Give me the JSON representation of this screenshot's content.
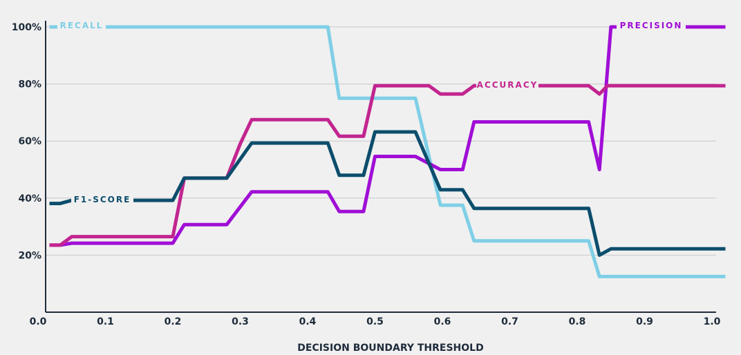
{
  "chart_data": {
    "type": "line",
    "title": "",
    "xlabel": "DECISION BOUNDARY THRESHOLD",
    "ylabel": "",
    "xlim": [
      0.0,
      1.04
    ],
    "ylim": [
      0,
      100
    ],
    "x_ticks": [
      "0.0",
      "0.1",
      "0.2",
      "0.3",
      "0.4",
      "0.5",
      "0.6",
      "0.7",
      "0.8",
      "0.9",
      "1.0"
    ],
    "y_ticks": [
      "20%",
      "40%",
      "60%",
      "80%",
      "100%"
    ],
    "grid": "horizontal",
    "series": [
      {
        "name": "RECALL",
        "color": "#7fcfe6",
        "points": [
          [
            0.017,
            100
          ],
          [
            0.43,
            100
          ],
          [
            0.447,
            75
          ],
          [
            0.56,
            75
          ],
          [
            0.597,
            37.5
          ],
          [
            0.63,
            37.5
          ],
          [
            0.647,
            25
          ],
          [
            0.817,
            25
          ],
          [
            0.833,
            12.5
          ],
          [
            1.02,
            12.5
          ]
        ]
      },
      {
        "name": "PRECISION",
        "color": "#a00ed6",
        "points": [
          [
            0.017,
            23.5
          ],
          [
            0.033,
            23.5
          ],
          [
            0.05,
            24.2
          ],
          [
            0.2,
            24.2
          ],
          [
            0.217,
            30.7
          ],
          [
            0.28,
            30.7
          ],
          [
            0.317,
            42.2
          ],
          [
            0.43,
            42.2
          ],
          [
            0.447,
            35.3
          ],
          [
            0.483,
            35.3
          ],
          [
            0.5,
            54.6
          ],
          [
            0.56,
            54.6
          ],
          [
            0.597,
            50
          ],
          [
            0.63,
            50
          ],
          [
            0.647,
            66.7
          ],
          [
            0.817,
            66.7
          ],
          [
            0.833,
            50
          ],
          [
            0.85,
            100
          ],
          [
            1.02,
            100
          ]
        ]
      },
      {
        "name": "ACCURACY",
        "color": "#c2258f",
        "points": [
          [
            0.017,
            23.5
          ],
          [
            0.033,
            23.5
          ],
          [
            0.05,
            26.5
          ],
          [
            0.2,
            26.5
          ],
          [
            0.217,
            47
          ],
          [
            0.28,
            47
          ],
          [
            0.3,
            59
          ],
          [
            0.317,
            67.5
          ],
          [
            0.43,
            67.5
          ],
          [
            0.447,
            61.7
          ],
          [
            0.483,
            61.7
          ],
          [
            0.5,
            79.4
          ],
          [
            0.58,
            79.4
          ],
          [
            0.597,
            76.5
          ],
          [
            0.63,
            76.5
          ],
          [
            0.647,
            79.4
          ],
          [
            0.817,
            79.4
          ],
          [
            0.833,
            76.5
          ],
          [
            0.845,
            79.4
          ],
          [
            1.02,
            79.4
          ]
        ]
      },
      {
        "name": "F1-SCORE",
        "color": "#0c4d6c",
        "points": [
          [
            0.017,
            38.1
          ],
          [
            0.033,
            38.1
          ],
          [
            0.05,
            39.2
          ],
          [
            0.2,
            39.2
          ],
          [
            0.217,
            47
          ],
          [
            0.28,
            47
          ],
          [
            0.317,
            59.3
          ],
          [
            0.43,
            59.3
          ],
          [
            0.447,
            48
          ],
          [
            0.483,
            48
          ],
          [
            0.5,
            63.2
          ],
          [
            0.56,
            63.2
          ],
          [
            0.597,
            42.9
          ],
          [
            0.63,
            42.9
          ],
          [
            0.647,
            36.4
          ],
          [
            0.817,
            36.4
          ],
          [
            0.833,
            20
          ],
          [
            0.85,
            22.2
          ],
          [
            1.02,
            22.2
          ]
        ]
      }
    ]
  }
}
